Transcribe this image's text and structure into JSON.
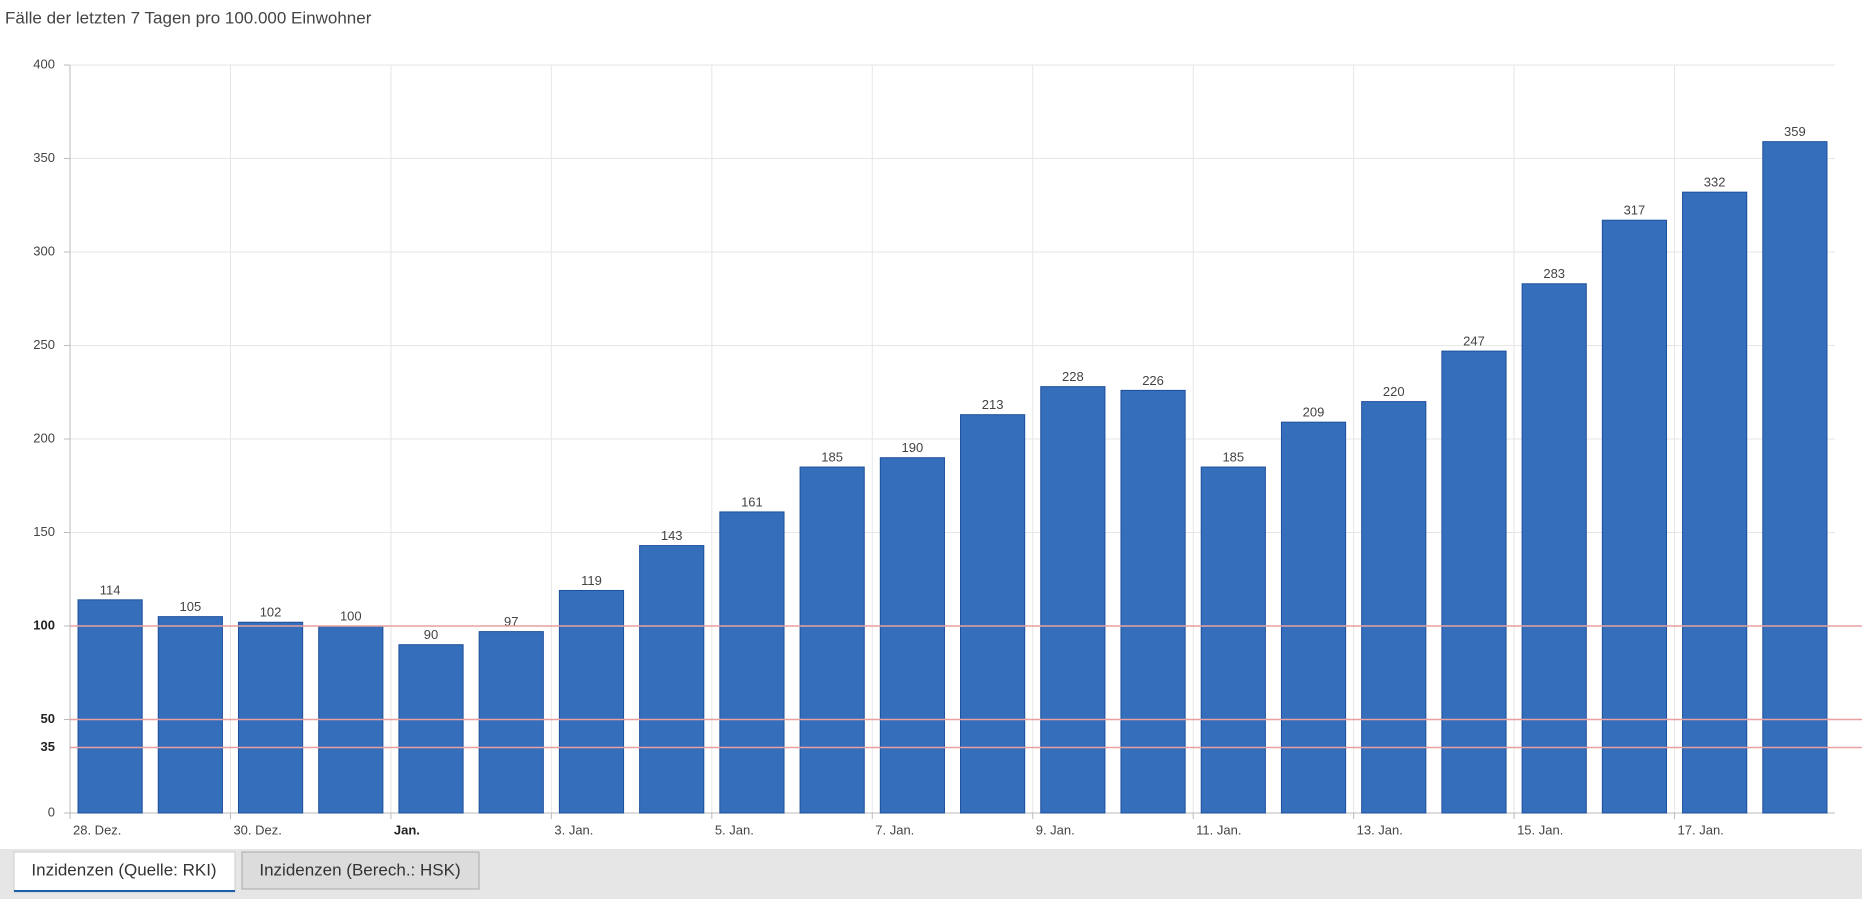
{
  "chart_data": {
    "type": "bar",
    "title": "Fälle der letzten 7 Tagen pro 100.000 Einwohner",
    "categories": [
      "28. Dez.",
      null,
      "30. Dez.",
      null,
      "Jan.",
      null,
      "3. Jan.",
      null,
      "5. Jan.",
      null,
      "7. Jan.",
      null,
      "9. Jan.",
      null,
      "11. Jan.",
      null,
      "13. Jan.",
      null,
      "15. Jan.",
      null,
      "17. Jan.",
      null
    ],
    "values": [
      114,
      105,
      102,
      100,
      90,
      97,
      119,
      143,
      161,
      185,
      190,
      213,
      228,
      226,
      185,
      209,
      220,
      247,
      283,
      317,
      332,
      359
    ],
    "color": "#356fbc",
    "edge_color": "#1d4f9c",
    "ylim": [
      0,
      400
    ],
    "yticks": [
      0,
      50,
      100,
      150,
      200,
      250,
      300,
      350,
      400
    ],
    "grid": true,
    "reference_lines": [
      35,
      50,
      100
    ],
    "reference_color": "#e8a0a0"
  },
  "tabs": [
    "Inzidenzen (Quelle: RKI)",
    "Inzidenzen (Berech.: HSK)"
  ]
}
